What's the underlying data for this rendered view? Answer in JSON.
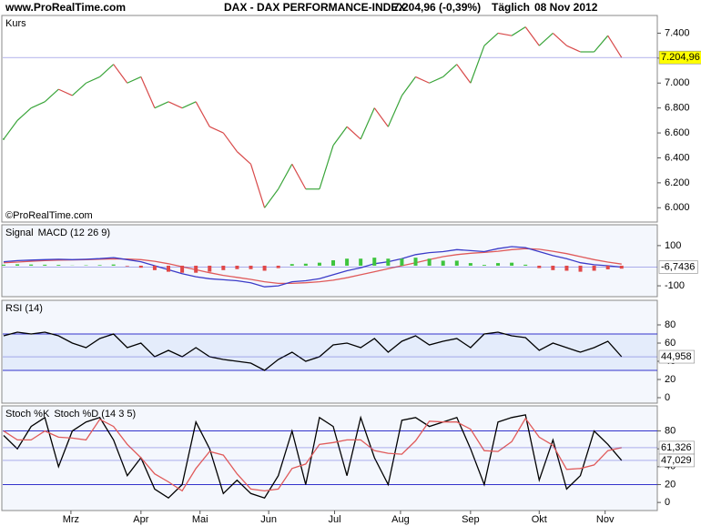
{
  "header": {
    "site": "www.ProRealTime.com",
    "title": "DAX - DAX PERFORMANCE-INDEX",
    "quote": "7.204,96 (-0,39%)",
    "period": "Täglich",
    "date": "08 Nov 2012"
  },
  "chart_data": [
    {
      "type": "line",
      "watermark": "©ProRealTime.com",
      "x": [
        0,
        1,
        2,
        3,
        4,
        5,
        6,
        7,
        8,
        9,
        10,
        11,
        12,
        13,
        14,
        15,
        16,
        17,
        18,
        19,
        20,
        21,
        22,
        23,
        24,
        25,
        26,
        27,
        28,
        29,
        30,
        31,
        32,
        33,
        34,
        35,
        36,
        37,
        38,
        39,
        40,
        41,
        42,
        43,
        44,
        45
      ],
      "xlim": [
        0,
        47.6
      ],
      "ylim": [
        5900,
        7520
      ],
      "yticks": [
        {
          "value": 6000,
          "label": "6.000"
        },
        {
          "value": 6200,
          "label": "6.200"
        },
        {
          "value": 6400,
          "label": "6.400"
        },
        {
          "value": 6600,
          "label": "6.600"
        },
        {
          "value": 6800,
          "label": "6.800"
        },
        {
          "value": 7000,
          "label": "7.000"
        },
        {
          "value": 7200,
          "label": "7.200"
        },
        {
          "value": 7400,
          "label": "7.400"
        }
      ],
      "series": [
        {
          "name": "Kurs",
          "style": "updown",
          "color": "#d84a4a",
          "up_color": "#3aa53a",
          "down_color": "#d84a4a",
          "label_bg": "#ffff00",
          "label_color": "#000000",
          "last_label": "7.204,96",
          "values": [
            6550,
            6700,
            6800,
            6850,
            6950,
            6900,
            7000,
            7050,
            7150,
            7000,
            7050,
            6800,
            6850,
            6800,
            6850,
            6650,
            6600,
            6450,
            6350,
            6000,
            6150,
            6350,
            6150,
            6150,
            6500,
            6650,
            6550,
            6800,
            6650,
            6900,
            7050,
            7000,
            7050,
            7150,
            7000,
            7300,
            7400,
            7380,
            7450,
            7300,
            7400,
            7300,
            7250,
            7250,
            7380,
            7204.96
          ]
        }
      ]
    },
    {
      "type": "line",
      "x": [
        0,
        1,
        2,
        3,
        4,
        5,
        6,
        7,
        8,
        9,
        10,
        11,
        12,
        13,
        14,
        15,
        16,
        17,
        18,
        19,
        20,
        21,
        22,
        23,
        24,
        25,
        26,
        27,
        28,
        29,
        30,
        31,
        32,
        33,
        34,
        35,
        36,
        37,
        38,
        39,
        40,
        41,
        42,
        43,
        44,
        45
      ],
      "xlim": [
        0,
        47.6
      ],
      "ylim": [
        -145,
        190
      ],
      "yticks": [
        -100,
        100
      ],
      "series": [
        {
          "name": "Signal",
          "style": "line",
          "color": "#e05a5a",
          "values": [
            15,
            18,
            22,
            25,
            28,
            29,
            30,
            32,
            34,
            33,
            30,
            22,
            10,
            -5,
            -20,
            -35,
            -48,
            -58,
            -68,
            -80,
            -88,
            -88,
            -85,
            -80,
            -72,
            -60,
            -45,
            -30,
            -15,
            0,
            15,
            30,
            45,
            55,
            62,
            66,
            72,
            80,
            85,
            82,
            72,
            60,
            45,
            30,
            18,
            8
          ]
        },
        {
          "name": "MACD (12 26 9)",
          "style": "line",
          "color": "#3b3bc8",
          "label_bg": "#ffffff",
          "label_color": "#000000",
          "last_label": "-6,7436",
          "values": [
            20,
            25,
            28,
            30,
            32,
            30,
            32,
            35,
            40,
            30,
            20,
            0,
            -20,
            -40,
            -55,
            -65,
            -70,
            -75,
            -85,
            -105,
            -100,
            -80,
            -75,
            -65,
            -45,
            -25,
            -10,
            10,
            20,
            35,
            55,
            65,
            70,
            80,
            75,
            70,
            85,
            95,
            90,
            70,
            50,
            35,
            15,
            5,
            0,
            -6.7436
          ]
        },
        {
          "style": "bar",
          "color": "#3ec43e",
          "negative_color": "#e04848",
          "values": [
            5,
            7,
            6,
            5,
            4,
            1,
            2,
            3,
            6,
            -3,
            -10,
            -22,
            -30,
            -35,
            -35,
            -30,
            -22,
            -17,
            -17,
            -25,
            -12,
            8,
            10,
            15,
            27,
            35,
            35,
            40,
            35,
            35,
            40,
            35,
            25,
            25,
            13,
            4,
            13,
            15,
            5,
            -12,
            -22,
            -25,
            -30,
            -25,
            -18,
            -14.74
          ]
        }
      ]
    },
    {
      "type": "line",
      "x": [
        0,
        1,
        2,
        3,
        4,
        5,
        6,
        7,
        8,
        9,
        10,
        11,
        12,
        13,
        14,
        15,
        16,
        17,
        18,
        19,
        20,
        21,
        22,
        23,
        24,
        25,
        26,
        27,
        28,
        29,
        30,
        31,
        32,
        33,
        34,
        35,
        36,
        37,
        38,
        39,
        40,
        41,
        42,
        43,
        44,
        45
      ],
      "xlim": [
        0,
        47.6
      ],
      "ylim": [
        -4,
        104
      ],
      "yticks": [
        0,
        20,
        40,
        60,
        80
      ],
      "levels": [
        30,
        70
      ],
      "level_color": "#3333cc",
      "band_color": "#e4ecfb",
      "series": [
        {
          "name": "RSI (14)",
          "style": "line",
          "color": "#000000",
          "label_bg": "#ffffff",
          "label_color": "#000000",
          "last_label": "44,958",
          "values": [
            68,
            72,
            70,
            72,
            68,
            60,
            55,
            65,
            70,
            55,
            60,
            45,
            52,
            45,
            55,
            45,
            42,
            40,
            38,
            30,
            42,
            50,
            40,
            45,
            58,
            60,
            55,
            65,
            50,
            62,
            68,
            58,
            62,
            65,
            55,
            70,
            72,
            68,
            66,
            52,
            60,
            55,
            50,
            55,
            62,
            44.958
          ]
        }
      ]
    },
    {
      "type": "line",
      "x": [
        0,
        1,
        2,
        3,
        4,
        5,
        6,
        7,
        8,
        9,
        10,
        11,
        12,
        13,
        14,
        15,
        16,
        17,
        18,
        19,
        20,
        21,
        22,
        23,
        24,
        25,
        26,
        27,
        28,
        29,
        30,
        31,
        32,
        33,
        34,
        35,
        36,
        37,
        38,
        39,
        40,
        41,
        42,
        43,
        44,
        45
      ],
      "xlim": [
        0,
        47.6
      ],
      "ylim": [
        -7,
        105
      ],
      "yticks": [
        0,
        20,
        40,
        60,
        80
      ],
      "levels": [
        20,
        80
      ],
      "level_color": "#3333cc",
      "xticks": [
        {
          "value": 4.9,
          "label": "Mrz"
        },
        {
          "value": 10,
          "label": "Apr"
        },
        {
          "value": 14.3,
          "label": "Mai"
        },
        {
          "value": 19.3,
          "label": "Jun"
        },
        {
          "value": 24.1,
          "label": "Jul"
        },
        {
          "value": 28.9,
          "label": "Aug"
        },
        {
          "value": 34,
          "label": "Sep"
        },
        {
          "value": 39,
          "label": "Okt"
        },
        {
          "value": 43.8,
          "label": "Nov"
        }
      ],
      "series": [
        {
          "name": "Stoch %K",
          "style": "line",
          "color": "#000000",
          "label_bg": "#ffffff",
          "label_color": "#000000",
          "last_label": "47,029",
          "values": [
            75,
            60,
            85,
            95,
            40,
            80,
            90,
            95,
            70,
            30,
            50,
            15,
            5,
            20,
            90,
            60,
            10,
            25,
            10,
            5,
            30,
            80,
            20,
            95,
            85,
            30,
            95,
            50,
            20,
            92,
            95,
            85,
            90,
            95,
            60,
            20,
            90,
            95,
            98,
            25,
            70,
            15,
            30,
            80,
            65,
            47.029
          ]
        },
        {
          "name": "Stoch %D (14 3 5)",
          "style": "line",
          "color": "#e05a5a",
          "label_bg": "#ffffff",
          "label_color": "#e05a5a",
          "last_label": "61,326",
          "values": [
            80,
            70,
            70,
            80,
            73,
            72,
            70,
            93,
            85,
            65,
            50,
            32,
            23,
            13,
            38,
            57,
            53,
            32,
            15,
            13,
            15,
            38,
            43,
            65,
            67,
            70,
            70,
            58,
            55,
            54,
            69,
            91,
            90,
            90,
            82,
            58,
            57,
            68,
            94,
            73,
            64,
            37,
            38,
            42,
            58,
            61.326
          ]
        }
      ]
    }
  ]
}
